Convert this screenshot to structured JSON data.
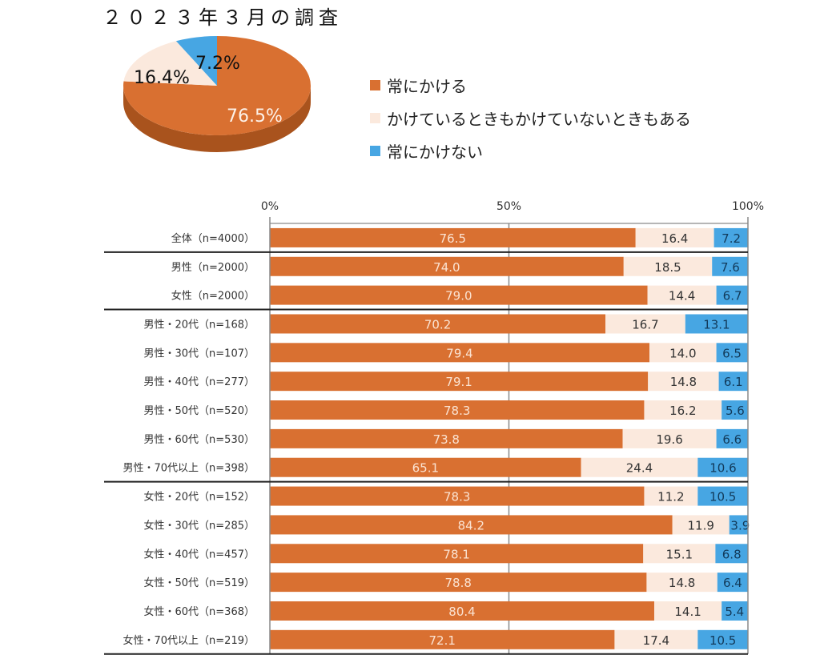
{
  "title": "２０２３年３月の調査",
  "colors": {
    "always": "#d97031",
    "always_side": "#a9531d",
    "sometimes": "#fbe9dd",
    "never": "#47a6e3",
    "axis": "#8a8a8a",
    "separator": "#222222"
  },
  "chart_data": [
    {
      "type": "pie",
      "title": "２０２３年３月の調査",
      "labels": [
        "常にかける",
        "かけているときもかけていないときもある",
        "常にかけない"
      ],
      "values": [
        76.5,
        16.4,
        7.2
      ],
      "data_labels": [
        "76.5%",
        "16.4%",
        "7.2%"
      ],
      "legend_position": "right",
      "style": "3d"
    },
    {
      "type": "bar",
      "orientation": "horizontal",
      "stacked": "100%",
      "xlim": [
        0,
        100
      ],
      "ticks": [
        {
          "value": 0,
          "label": "0%"
        },
        {
          "value": 50,
          "label": "50%"
        },
        {
          "value": 100,
          "label": "100%"
        }
      ],
      "categories": [
        "全体（n=4000）",
        "男性（n=2000）",
        "女性（n=2000）",
        "男性・20代（n=168）",
        "男性・30代（n=107）",
        "男性・40代（n=277）",
        "男性・50代（n=520）",
        "男性・60代（n=530）",
        "男性・70代以上（n=398）",
        "女性・20代（n=152）",
        "女性・30代（n=285）",
        "女性・40代（n=457）",
        "女性・50代（n=519）",
        "女性・60代（n=368）",
        "女性・70代以上（n=219）"
      ],
      "group_separators_after": [
        0,
        2,
        8,
        14
      ],
      "series": [
        {
          "name": "常にかける",
          "values": [
            76.5,
            74.0,
            79.0,
            70.2,
            79.4,
            79.1,
            78.3,
            73.8,
            65.1,
            78.3,
            84.2,
            78.1,
            78.8,
            80.4,
            72.1
          ]
        },
        {
          "name": "かけているときもかけていないときもある",
          "values": [
            16.4,
            18.5,
            14.4,
            16.7,
            14.0,
            14.8,
            16.2,
            19.6,
            24.4,
            11.2,
            11.9,
            15.1,
            14.8,
            14.1,
            17.4
          ]
        },
        {
          "name": "常にかけない",
          "values": [
            7.2,
            7.6,
            6.7,
            13.1,
            6.5,
            6.1,
            5.6,
            6.6,
            10.6,
            10.5,
            3.9,
            6.8,
            6.4,
            5.4,
            10.5
          ]
        }
      ]
    }
  ]
}
